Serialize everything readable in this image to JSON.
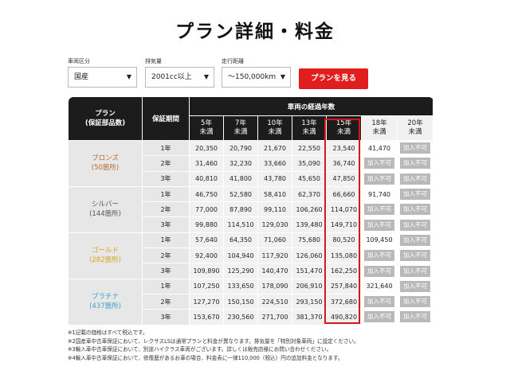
{
  "title": "プラン詳細・料金",
  "filters": {
    "origin_label": "車両区分",
    "origin_value": "国産",
    "displacement_label": "排気量",
    "displacement_value": "2001cc以上",
    "mileage_label": "走行距離",
    "mileage_value": "～150,000km",
    "search_button": "プランを見る"
  },
  "table": {
    "plan_header": "プラン\n(保証部品数)",
    "period_header": "保証期間",
    "age_header": "車両の経過年数",
    "age_columns": [
      "5年\n未満",
      "7年\n未満",
      "10年\n未満",
      "13年\n未満",
      "15年\n未満",
      "18年\n未満",
      "20年\n未満"
    ],
    "na_text": "加入不可",
    "plans": [
      {
        "name": "ブロンズ",
        "parts": "(50箇所)",
        "color": "#b86a2d",
        "rows": [
          {
            "period": "1年",
            "values": [
              "20,350",
              "20,790",
              "21,670",
              "22,550",
              "23,540",
              "41,470",
              null
            ]
          },
          {
            "period": "2年",
            "values": [
              "31,460",
              "32,230",
              "33,660",
              "35,090",
              "36,740",
              null,
              null
            ]
          },
          {
            "period": "3年",
            "values": [
              "40,810",
              "41,800",
              "43,780",
              "45,650",
              "47,850",
              null,
              null
            ]
          }
        ]
      },
      {
        "name": "シルバー",
        "parts": "(144箇所)",
        "color": "#555555",
        "rows": [
          {
            "period": "1年",
            "values": [
              "46,750",
              "52,580",
              "58,410",
              "62,370",
              "66,660",
              "91,740",
              null
            ]
          },
          {
            "period": "2年",
            "values": [
              "77,000",
              "87,890",
              "99,110",
              "106,260",
              "114,070",
              null,
              null
            ]
          },
          {
            "period": "3年",
            "values": [
              "99,880",
              "114,510",
              "129,030",
              "139,480",
              "149,710",
              null,
              null
            ]
          }
        ]
      },
      {
        "name": "ゴールド",
        "parts": "(282箇所)",
        "color": "#d5a51a",
        "rows": [
          {
            "period": "1年",
            "values": [
              "57,640",
              "64,350",
              "71,060",
              "75,680",
              "80,520",
              "109,450",
              null
            ]
          },
          {
            "period": "2年",
            "values": [
              "92,400",
              "104,940",
              "117,920",
              "126,060",
              "135,080",
              null,
              null
            ]
          },
          {
            "period": "3年",
            "values": [
              "109,890",
              "125,290",
              "140,470",
              "151,470",
              "162,250",
              null,
              null
            ]
          }
        ]
      },
      {
        "name": "プラチナ",
        "parts": "(437箇所)",
        "color": "#3aa0c8",
        "rows": [
          {
            "period": "1年",
            "values": [
              "107,250",
              "133,650",
              "178,090",
              "206,910",
              "257,840",
              "321,640",
              null
            ]
          },
          {
            "period": "2年",
            "values": [
              "127,270",
              "150,150",
              "224,510",
              "293,150",
              "372,680",
              null,
              null
            ]
          },
          {
            "period": "3年",
            "values": [
              "153,670",
              "230,560",
              "271,700",
              "381,370",
              "490,820",
              null,
              null
            ]
          }
        ]
      }
    ]
  },
  "notes": [
    "※1記載の価格はすべて税込です。",
    "※2国産車中古車保証において、レクサスLSは通常プランと料金が異なります。排気量を「特別対象車両」に設定ください。",
    "※3輸入車中古車保証において、別途ハイクラス車両がございます。詳しくは販売店様にお問い合わせください。",
    "※4輸入車中古車保証において、修復歴があるお車の場合、料金表に一律110,000（税込）円の追加料金となります。"
  ]
}
